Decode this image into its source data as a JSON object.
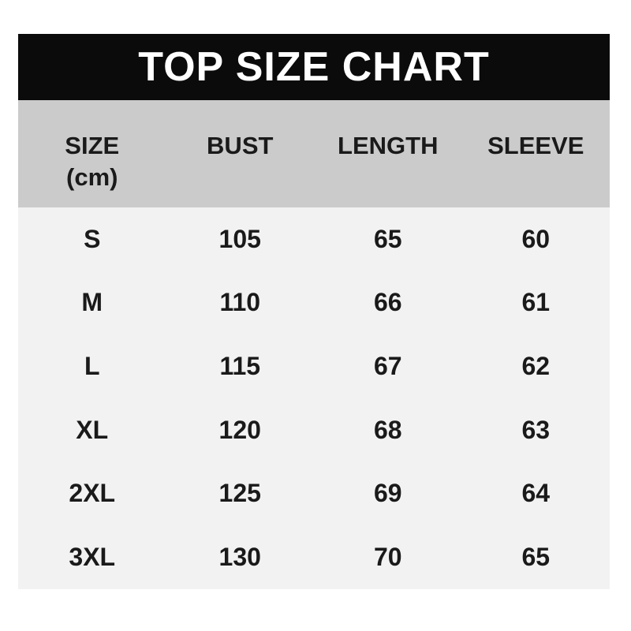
{
  "title": "TOP SIZE CHART",
  "size_chart": {
    "columns": [
      {
        "label": "SIZE",
        "sub": "(cm)"
      },
      {
        "label": "BUST"
      },
      {
        "label": "LENGTH"
      },
      {
        "label": "SLEEVE"
      }
    ],
    "rows": [
      [
        "S",
        "105",
        "65",
        "60"
      ],
      [
        "M",
        "110",
        "66",
        "61"
      ],
      [
        "L",
        "115",
        "67",
        "62"
      ],
      [
        "XL",
        "120",
        "68",
        "63"
      ],
      [
        "2XL",
        "125",
        "69",
        "64"
      ],
      [
        "3XL",
        "130",
        "70",
        "65"
      ]
    ]
  },
  "colors": {
    "page_bg": "#ffffff",
    "title_bar": "#0b0b0b",
    "title_text": "#ffffff",
    "header_bg": "#cbcbcb",
    "body_bg": "#f2f2f2",
    "text": "#1a1a1a"
  },
  "chart_data": {
    "type": "table",
    "title": "TOP SIZE CHART",
    "unit": "cm",
    "columns": [
      "SIZE (cm)",
      "BUST",
      "LENGTH",
      "SLEEVE"
    ],
    "rows": [
      [
        "S",
        105,
        65,
        60
      ],
      [
        "M",
        110,
        66,
        61
      ],
      [
        "L",
        115,
        67,
        62
      ],
      [
        "XL",
        120,
        68,
        63
      ],
      [
        "2XL",
        125,
        69,
        64
      ],
      [
        "3XL",
        130,
        70,
        65
      ]
    ]
  }
}
